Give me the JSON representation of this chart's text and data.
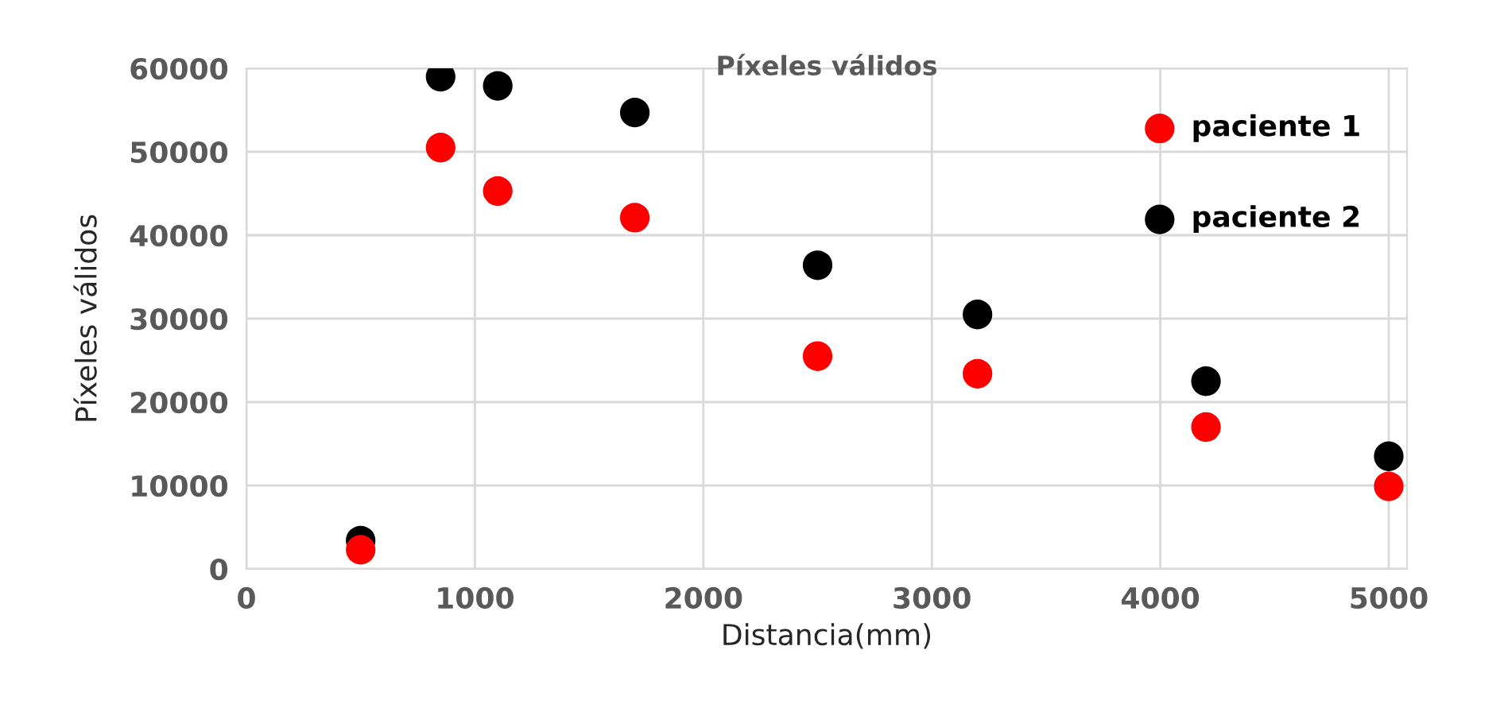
{
  "chart_data": {
    "type": "scatter",
    "title": "Píxeles válidos",
    "xlabel": "Distancia(mm)",
    "ylabel": "Píxeles válidos",
    "x": [
      500,
      850,
      1100,
      1700,
      2500,
      3200,
      4200,
      5000
    ],
    "series": [
      {
        "name": "paciente 1",
        "color": "#ff0000",
        "values": [
          2300,
          50500,
          45300,
          42100,
          25500,
          23400,
          17000,
          9900
        ]
      },
      {
        "name": "paciente 2",
        "color": "#000000",
        "values": [
          3400,
          59000,
          57900,
          54700,
          36400,
          30500,
          22500,
          13500
        ]
      }
    ],
    "xlim": [
      0,
      5080
    ],
    "xticks": [
      0,
      1000,
      2000,
      3000,
      4000,
      5000
    ],
    "ylim": [
      0,
      60000
    ],
    "yticks": [
      0,
      10000,
      20000,
      30000,
      40000,
      50000,
      60000
    ],
    "grid": true,
    "legend": "top right",
    "marker": "circle"
  }
}
